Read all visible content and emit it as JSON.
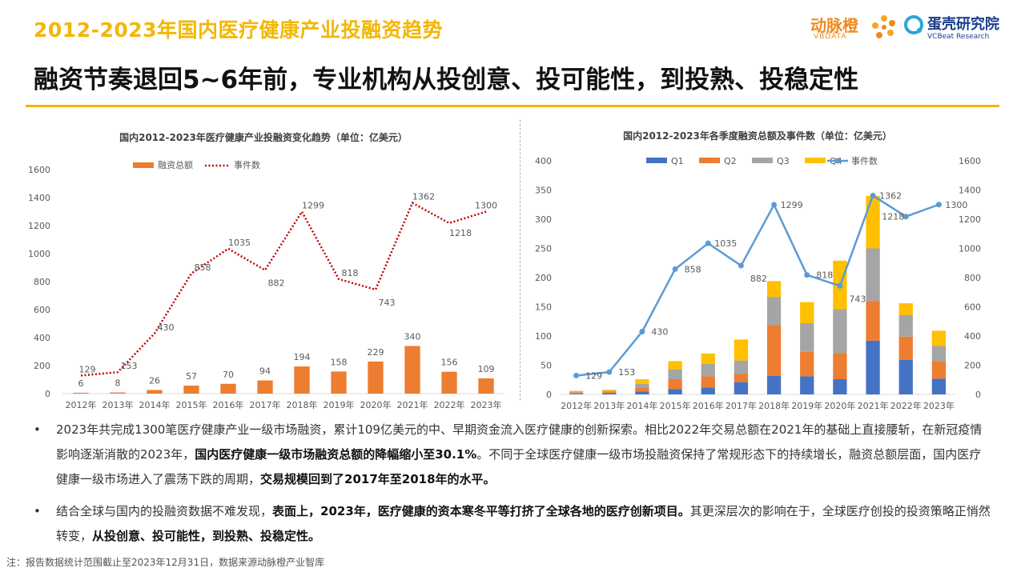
{
  "header": {
    "super_title": "2012-2023年国内医疗健康产业投融资趋势",
    "headline": "融资节奏退回5~6年前，专业机构从投创意、投可能性，到投熟、投稳定性"
  },
  "logos": {
    "dongmaicheng_cn": "动脉橙",
    "dongmaicheng_en": "VBDATA",
    "vcbeat_cn": "蛋壳研究院",
    "vcbeat_en": "VCBeat Research"
  },
  "colors": {
    "accent_gold": "#f2b705",
    "bar_orange": "#ed7d31",
    "line_red": "#c00000",
    "q1": "#4472c4",
    "q2": "#ed7d31",
    "q3": "#a5a5a5",
    "q4": "#ffc000",
    "line_blue": "#5b9bd5"
  },
  "chart_data": [
    {
      "type": "bar",
      "title": "国内2012-2023年医疗健康产业投融资变化趋势（单位：亿美元）",
      "categories": [
        "2012年",
        "2013年",
        "2014年",
        "2015年",
        "2016年",
        "2017年",
        "2018年",
        "2019年",
        "2020年",
        "2021年",
        "2022年",
        "2023年"
      ],
      "ylim": [
        0,
        1600
      ],
      "yticks": [
        "0",
        "200",
        "400",
        "600",
        "800",
        "1000",
        "1200",
        "1400",
        "1600"
      ],
      "legend_position": "top",
      "series": [
        {
          "name": "融资总额",
          "type": "bar",
          "values": [
            6,
            8,
            26,
            57,
            70,
            94,
            194,
            158,
            229,
            340,
            156,
            109
          ]
        },
        {
          "name": "事件数",
          "type": "line",
          "style": "dotted",
          "values": [
            129,
            153,
            430,
            858,
            1035,
            882,
            1299,
            818,
            743,
            1362,
            1218,
            1300
          ]
        }
      ]
    },
    {
      "type": "bar",
      "stacked": true,
      "title": "国内2012-2023年各季度融资总额及事件数（单位：亿美元）",
      "categories": [
        "2012年",
        "2013年",
        "2014年",
        "2015年",
        "2016年",
        "2017年",
        "2018年",
        "2019年",
        "2020年",
        "2021年",
        "2022年",
        "2023年"
      ],
      "ylim_left": [
        0,
        400
      ],
      "yticks_left": [
        "0",
        "50",
        "100",
        "150",
        "200",
        "250",
        "300",
        "350",
        "400"
      ],
      "ylim_right": [
        0,
        1600
      ],
      "yticks_right": [
        "0",
        "200",
        "400",
        "600",
        "800",
        "1000",
        "1200",
        "1400",
        "1600"
      ],
      "legend_position": "top",
      "series": [
        {
          "name": "Q1",
          "type": "bar",
          "values": [
            1,
            2,
            5,
            9,
            12,
            21,
            32,
            31,
            26,
            92,
            59,
            27
          ]
        },
        {
          "name": "Q2",
          "type": "bar",
          "values": [
            2,
            2,
            7,
            17,
            19,
            14,
            87,
            42,
            45,
            68,
            40,
            30
          ]
        },
        {
          "name": "Q3",
          "type": "bar",
          "values": [
            2,
            2,
            6,
            17,
            21,
            23,
            48,
            49,
            75,
            90,
            37,
            26
          ]
        },
        {
          "name": "Q4",
          "type": "bar",
          "values": [
            1,
            2,
            8,
            14,
            18,
            36,
            27,
            36,
            83,
            90,
            20,
            26
          ]
        },
        {
          "name": "事件数",
          "type": "line",
          "axis": "right",
          "values": [
            129,
            153,
            430,
            858,
            1035,
            882,
            1299,
            818,
            743,
            1362,
            1218,
            1300
          ]
        }
      ]
    }
  ],
  "bullets": [
    {
      "parts": [
        {
          "t": "2023年共完成1300笔医疗健康产业一级市场融资，累计109亿美元的中、早期资金流入医疗健康的创新探索。相比2022年交易总额在2021年的基础上直接腰斩，在新冠疫情影响逐渐消散的2023年，",
          "b": false
        },
        {
          "t": "国内医疗健康一级市场融资总额的降幅缩小至30.1%",
          "b": true
        },
        {
          "t": "。不同于全球医疗健康一级市场投融资保持了常规形态下的持续增长，融资总额层面，国内医疗健康一级市场进入了震荡下跌的周期，",
          "b": false
        },
        {
          "t": "交易规模回到了2017年至2018年的水平。",
          "b": true
        }
      ]
    },
    {
      "parts": [
        {
          "t": "结合全球与国内的投融资数据不难发现，",
          "b": false
        },
        {
          "t": "表面上，2023年，医疗健康的资本寒冬平等打挤了全球各地的医疗创新项目。",
          "b": true
        },
        {
          "t": "其更深层次的影响在于，全球医疗创投的投资策略正悄然转变，",
          "b": false
        },
        {
          "t": "从投创意、投可能性，到投熟、投稳定性。",
          "b": true
        }
      ]
    }
  ],
  "bullet_symbol": "•",
  "footnote": "注：报告数据统计范围截止至2023年12月31日，数据来源动脉橙产业智库"
}
